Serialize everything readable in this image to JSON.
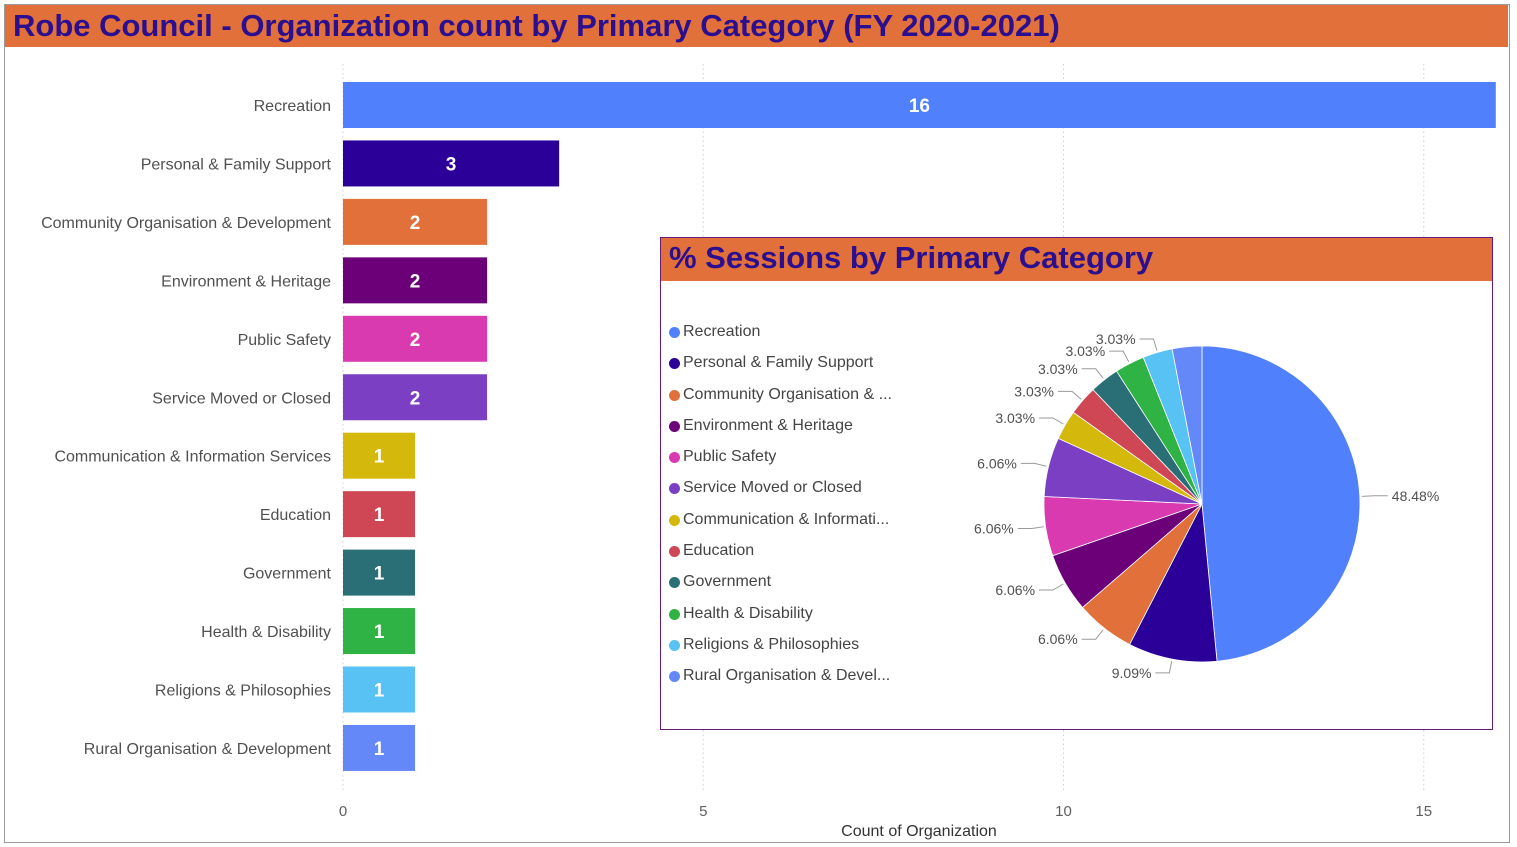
{
  "title": "Robe Council - Organization count by Primary Category (FY 2020-2021)",
  "colors": {
    "title_bar": "#e2703a",
    "title_text": "#2b0f8f"
  },
  "chart_data": [
    {
      "type": "bar",
      "orientation": "horizontal",
      "categories": [
        "Recreation",
        "Personal & Family Support",
        "Community Organisation & Development",
        "Environment & Heritage",
        "Public Safety",
        "Service Moved or Closed",
        "Communication & Information Services",
        "Education",
        "Government",
        "Health & Disability",
        "Religions & Philosophies",
        "Rural Organisation & Development"
      ],
      "values": [
        16,
        3,
        2,
        2,
        2,
        2,
        1,
        1,
        1,
        1,
        1,
        1
      ],
      "data_labels": [
        "16",
        "3",
        "2",
        "2",
        "2",
        "2",
        "1",
        "1",
        "1",
        "1",
        "1",
        "1"
      ],
      "colors": [
        "#5080fb",
        "#2b0099",
        "#e2703a",
        "#6b0078",
        "#d93ab0",
        "#7b3fc4",
        "#d4b80b",
        "#cf4654",
        "#2a6f76",
        "#2fb344",
        "#57c2f3",
        "#6488f7"
      ],
      "xlabel": "Count of Organization",
      "ylabel": "",
      "xlim": [
        0,
        16
      ],
      "xticks": [
        0,
        5,
        10,
        15
      ],
      "xtick_labels": [
        "0",
        "5",
        "10",
        "15"
      ],
      "grid": "vertical dotted"
    },
    {
      "type": "pie",
      "title": "% Sessions by Primary Category",
      "categories": [
        "Recreation",
        "Personal & Family Support",
        "Community Organisation & ...",
        "Environment & Heritage",
        "Public Safety",
        "Service Moved or Closed",
        "Communicati...",
        "Education",
        "Government",
        "Health & Disability",
        "Religions & Philosophies",
        "Rural Organisation & Devel..."
      ],
      "legend_labels": [
        "Recreation",
        "Personal & Family Support",
        "Community Organisation & ...",
        "Environment & Heritage",
        "Public Safety",
        "Service Moved or Closed",
        "Communication & Informati...",
        "Education",
        "Government",
        "Health & Disability",
        "Religions & Philosophies",
        "Rural Organisation & Devel..."
      ],
      "values": [
        48.48,
        9.09,
        6.06,
        6.06,
        6.06,
        6.06,
        3.03,
        3.03,
        3.03,
        3.03,
        3.03,
        3.03
      ],
      "data_labels": [
        "48.48%",
        "9.09%",
        "6.06%",
        "6.06%",
        "6.06%",
        "6.06%",
        "3.03%",
        "3.03%",
        "3.03%",
        "3.03%",
        "3.03%",
        ""
      ],
      "colors": [
        "#5080fb",
        "#2b0099",
        "#e2703a",
        "#6b0078",
        "#d93ab0",
        "#7b3fc4",
        "#d4b80b",
        "#cf4654",
        "#2a6f76",
        "#2fb344",
        "#57c2f3",
        "#6488f7"
      ],
      "legend_position": "left",
      "start": "top",
      "direction": "clockwise"
    }
  ]
}
